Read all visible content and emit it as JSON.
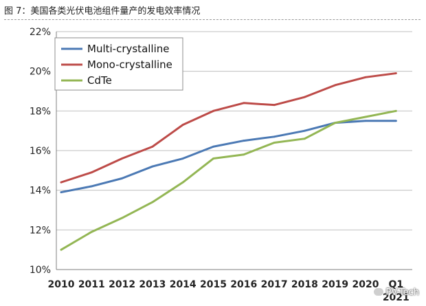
{
  "caption": "图 7：美国各类光伏电池组件量产的发电效率情况",
  "watermark": "PV-Tech",
  "chart_data": {
    "type": "line",
    "title": "",
    "xlabel": "",
    "ylabel": "",
    "categories": [
      "2010",
      "2011",
      "2012",
      "2013",
      "2014",
      "2015",
      "2016",
      "2017",
      "2018",
      "2019",
      "2020",
      "Q1 2021"
    ],
    "category_labels": [
      [
        "2010"
      ],
      [
        "2011"
      ],
      [
        "2012"
      ],
      [
        "2013"
      ],
      [
        "2014"
      ],
      [
        "2015"
      ],
      [
        "2016"
      ],
      [
        "2017"
      ],
      [
        "2018"
      ],
      [
        "2019"
      ],
      [
        "2020"
      ],
      [
        "Q1",
        "2021"
      ]
    ],
    "ylim": [
      10,
      22
    ],
    "yticks": [
      "10%",
      "12%",
      "14%",
      "16%",
      "18%",
      "20%",
      "22%"
    ],
    "ytick_values": [
      10,
      12,
      14,
      16,
      18,
      20,
      22
    ],
    "grid": true,
    "legend_position": "top-left",
    "series": [
      {
        "name": "Multi-crystalline",
        "color": "#4b79b4",
        "values": [
          13.9,
          14.2,
          14.6,
          15.2,
          15.6,
          16.2,
          16.5,
          16.7,
          17.0,
          17.4,
          17.5,
          17.5
        ]
      },
      {
        "name": "Mono-crystalline",
        "color": "#bd4b48",
        "values": [
          14.4,
          14.9,
          15.6,
          16.2,
          17.3,
          18.0,
          18.4,
          18.3,
          18.7,
          19.3,
          19.7,
          19.9
        ]
      },
      {
        "name": "CdTe",
        "color": "#93b654",
        "values": [
          11.0,
          11.9,
          12.6,
          13.4,
          14.4,
          15.6,
          15.8,
          16.4,
          16.6,
          17.4,
          17.7,
          18.0
        ]
      }
    ]
  }
}
